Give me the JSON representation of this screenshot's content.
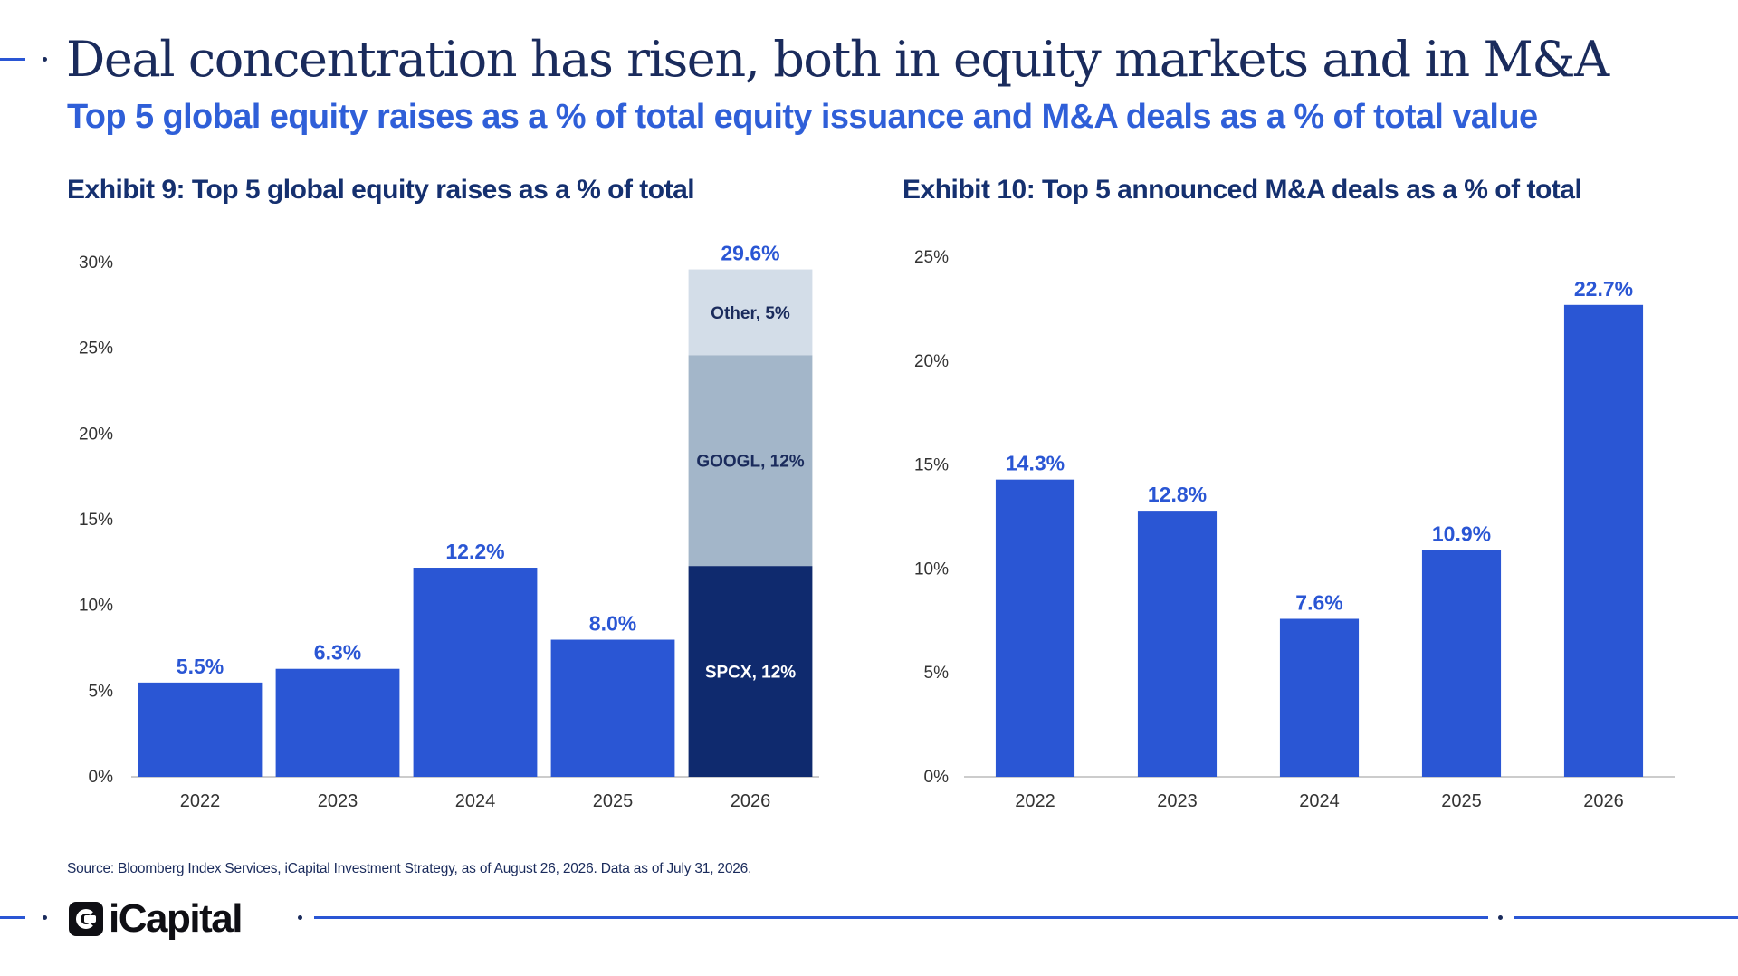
{
  "header": {
    "title": "Deal concentration has risen, both in equity markets and in M&A",
    "subtitle": "Top 5 global equity raises as a % of total equity issuance and M&A deals as a % of total value"
  },
  "exhibit9": {
    "title": "Exhibit 9: Top 5 global equity raises as a % of total"
  },
  "exhibit10": {
    "title": "Exhibit 10: Top 5 announced M&A deals as a % of total"
  },
  "footer": {
    "source": "Source: Bloomberg Index Services, iCapital Investment Strategy, as of August 26, 2026. Data as of July 31, 2026.",
    "logo_text": "iCapital"
  },
  "colors": {
    "primary_bar": "#2a56d4",
    "spcx": "#0f2a6e",
    "googl": "#a3b6c9",
    "other": "#d3dde8",
    "label_blue": "#2a56d4",
    "axis_text": "#333333"
  },
  "chart_data": [
    {
      "type": "bar",
      "title": "Exhibit 9: Top 5 global equity raises as a % of total",
      "categories": [
        "2022",
        "2023",
        "2024",
        "2025",
        "2026"
      ],
      "values": [
        5.5,
        6.3,
        12.2,
        8.0,
        29.6
      ],
      "value_labels": [
        "5.5%",
        "6.3%",
        "12.2%",
        "8.0%",
        "29.6%"
      ],
      "stacked_breakdown": {
        "category": "2026",
        "segments": [
          {
            "name": "SPCX, 12%",
            "value": 12.3
          },
          {
            "name": "GOOGL, 12%",
            "value": 12.3
          },
          {
            "name": "Other, 5%",
            "value": 5.0
          }
        ]
      },
      "yticks": [
        "0%",
        "5%",
        "10%",
        "15%",
        "20%",
        "25%",
        "30%"
      ],
      "ylim": [
        0,
        30
      ],
      "grid": false
    },
    {
      "type": "bar",
      "title": "Exhibit 10: Top 5 announced M&A deals as a % of total",
      "categories": [
        "2022",
        "2023",
        "2024",
        "2025",
        "2026"
      ],
      "values": [
        14.3,
        12.8,
        7.6,
        10.9,
        22.7
      ],
      "value_labels": [
        "14.3%",
        "12.8%",
        "7.6%",
        "10.9%",
        "22.7%"
      ],
      "yticks": [
        "0%",
        "5%",
        "10%",
        "15%",
        "20%",
        "25%"
      ],
      "ylim": [
        0,
        25
      ],
      "grid": false
    }
  ]
}
